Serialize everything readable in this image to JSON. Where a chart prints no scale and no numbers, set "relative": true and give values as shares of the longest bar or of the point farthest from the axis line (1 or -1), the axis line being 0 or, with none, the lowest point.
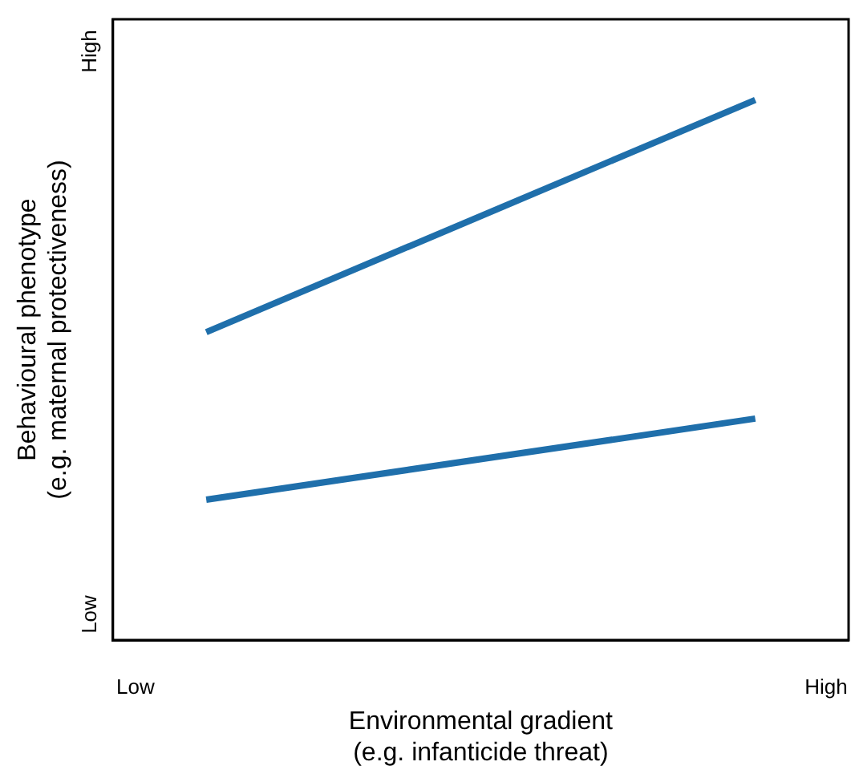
{
  "chart_data": {
    "type": "line",
    "xlabel": "Environmental gradient\n(e.g. infanticide threat)",
    "ylabel": "Behavioural phenotype\n(e.g. maternal protectiveness)",
    "categories": [
      null,
      null
    ],
    "relative": true,
    "series": [
      {
        "color": "#1f6fab",
        "values": [
          0.57,
          1
        ]
      },
      {
        "color": "#1f6fab",
        "values": [
          0.26,
          0.41
        ]
      }
    ],
    "annotations": [
      "Low",
      "High",
      "Low",
      "High"
    ],
    "legend": false
  }
}
